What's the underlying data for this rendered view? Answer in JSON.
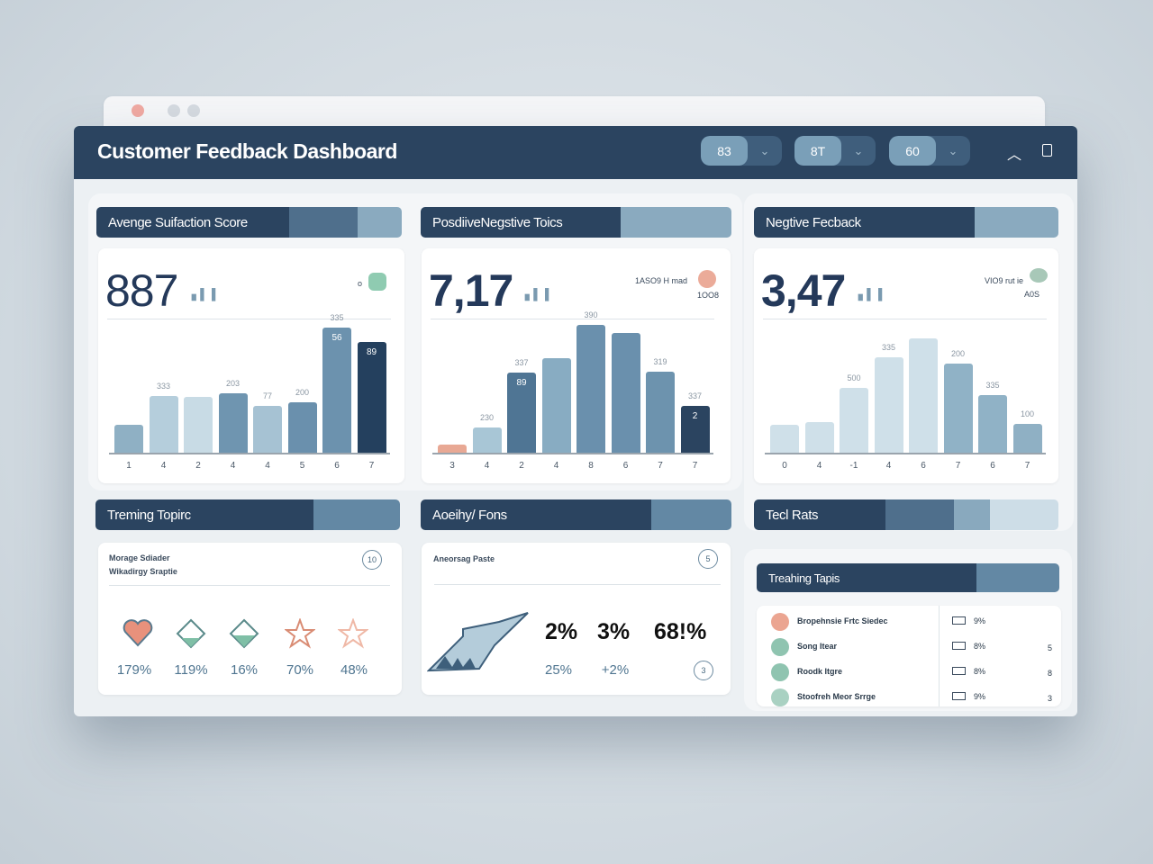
{
  "header": {
    "title": "Customer Feedback Dashboard",
    "pills": [
      {
        "value": "83"
      },
      {
        "value": "8T"
      },
      {
        "value": "60"
      }
    ]
  },
  "panels": [
    {
      "title": "Avenge Suifaction Score",
      "metric": "887",
      "note": "o",
      "chart_index": 0
    },
    {
      "title": "PosdiiveNegstive Toics",
      "metric": "7,17",
      "note": "1ASO9 H mad",
      "note2": "1OO8",
      "chart_index": 1
    },
    {
      "title": "Negtive Fecback",
      "metric": "3,47",
      "note": "VIO9 rut ie",
      "note2": "A0S",
      "chart_index": 2
    }
  ],
  "trending": {
    "title": "Treming Topirc",
    "line1": "Morage Sdiader",
    "line2": "Wikadirgy Sraptie",
    "btn": "10",
    "items": [
      {
        "icon": "heart-icon",
        "pct": "179%"
      },
      {
        "icon": "diamond-icon",
        "pct": "119%"
      },
      {
        "icon": "diamond-icon",
        "pct": "16%"
      },
      {
        "icon": "star-icon",
        "pct": "70%"
      },
      {
        "icon": "star-icon",
        "pct": "48%"
      }
    ]
  },
  "activity": {
    "title": "Aoeihy/ Fons",
    "subtitle": "Aneorsag Paste",
    "btn1": "5",
    "btn2": "3",
    "big": [
      "2%",
      "3%",
      "68!%"
    ],
    "small": [
      "25%",
      "+2%"
    ]
  },
  "tech": {
    "title": "Tecl Rats"
  },
  "topics": {
    "title": "Treahing Tapis",
    "items": [
      {
        "name": "Bropehnsie Frtc Siedec",
        "val": "9%",
        "n": ""
      },
      {
        "name": "Song Itear",
        "val": "8%",
        "n": "5"
      },
      {
        "name": "Roodk Itgre",
        "val": "8%",
        "n": "8"
      },
      {
        "name": "Stoofreh Meor Srrge",
        "val": "9%",
        "n": "3"
      }
    ]
  },
  "colors": {
    "navy": "#2b4460",
    "mid": "#5e86a3",
    "light": "#a9c4d4",
    "green": "#7fbfa6",
    "coral": "#e8917c"
  },
  "chart_data": [
    {
      "type": "bar",
      "title": "Avenge Suifaction Score",
      "categories": [
        "1",
        "4",
        "2",
        "4",
        "4",
        "5",
        "6",
        "7"
      ],
      "values": [
        31,
        63,
        62,
        66,
        52,
        56,
        139,
        123
      ],
      "labels": [
        "",
        "333",
        "",
        "203",
        "77",
        "200",
        "335",
        ""
      ],
      "inner": [
        "",
        "",
        "",
        "",
        "",
        "",
        "56",
        "89"
      ],
      "ylim": [
        0,
        150
      ]
    },
    {
      "type": "bar",
      "title": "PosdiiveNegstive Toics",
      "categories": [
        "3",
        "4",
        "2",
        "4",
        "8",
        "6",
        "7",
        "7"
      ],
      "values": [
        9,
        28,
        89,
        105,
        142,
        133,
        90,
        52
      ],
      "labels": [
        "",
        "230",
        "337",
        "",
        "390",
        "",
        "319",
        "337"
      ],
      "inner": [
        "",
        "",
        "89",
        "",
        "",
        "",
        "",
        "2"
      ],
      "ylim": [
        0,
        150
      ]
    },
    {
      "type": "bar",
      "title": "Negtive Fecback",
      "categories": [
        "0",
        "4",
        "-1",
        "4",
        "6",
        "7",
        "6",
        "7"
      ],
      "values": [
        31,
        34,
        72,
        106,
        127,
        99,
        64,
        32
      ],
      "labels": [
        "",
        "",
        "500",
        "335",
        "",
        "200",
        "335",
        "100"
      ],
      "inner": [
        "",
        "",
        "",
        "",
        "",
        "",
        "",
        ""
      ],
      "ylim": [
        0,
        150
      ]
    }
  ]
}
